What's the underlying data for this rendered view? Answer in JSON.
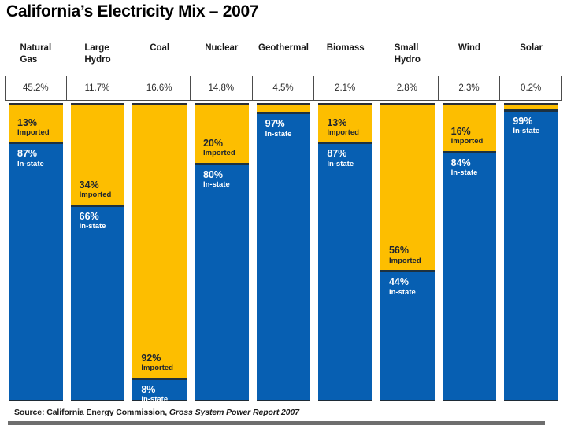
{
  "title": "California’s Electricity Mix – 2007",
  "source": {
    "prefix": "Source: California Energy Commission, ",
    "report": "Gross System Power Report 2007"
  },
  "colors": {
    "imported": "#FDBE00",
    "instate": "#075FB2",
    "segment_divider": "#1d3140",
    "table_border": "#4c4c4c"
  },
  "chart_data": {
    "type": "bar",
    "title": "California’s Electricity Mix – 2007",
    "categories": [
      "Natural Gas",
      "Large Hydro",
      "Coal",
      "Nuclear",
      "Geothermal",
      "Biomass",
      "Small Hydro",
      "Wind",
      "Solar"
    ],
    "share_of_total_percent": [
      45.2,
      11.7,
      16.6,
      14.8,
      4.5,
      2.1,
      2.8,
      2.3,
      0.2
    ],
    "series": [
      {
        "name": "Imported",
        "color": "#FDBE00",
        "values": [
          13,
          34,
          92,
          20,
          null,
          13,
          56,
          16,
          null
        ]
      },
      {
        "name": "In-state",
        "color": "#075FB2",
        "values": [
          87,
          66,
          8,
          80,
          97,
          87,
          44,
          84,
          99
        ]
      }
    ],
    "unit": "%",
    "ylim": [
      0,
      100
    ],
    "legend": "none",
    "grid": false,
    "notes": "Each column is a 100% stacked bar (imported on top, in-state below); imported share is unlabeled for Geothermal and Solar. Share-of-total row shown in bordered cells above bars.",
    "source": "Source: California Energy Commission, Gross System Power Report 2007"
  },
  "columns": [
    {
      "header": "Natural\nGas",
      "share": "45.2%",
      "imported_visual_pct": 13,
      "imported_label": "13%",
      "imported_sub": "Imported",
      "instate_label": "87%",
      "instate_sub": "In-state"
    },
    {
      "header": "Large\nHydro",
      "share": "11.7%",
      "imported_visual_pct": 34,
      "imported_label": "34%",
      "imported_sub": "Imported",
      "instate_label": "66%",
      "instate_sub": "In-state"
    },
    {
      "header": "Coal",
      "share": "16.6%",
      "imported_visual_pct": 92,
      "imported_label": "92%",
      "imported_sub": "Imported",
      "instate_label": "8%",
      "instate_sub": "In-state"
    },
    {
      "header": "Nuclear",
      "share": "14.8%",
      "imported_visual_pct": 20,
      "imported_label": "20%",
      "imported_sub": "Imported",
      "instate_label": "80%",
      "instate_sub": "In-state"
    },
    {
      "header": "Geothermal",
      "share": "4.5%",
      "imported_visual_pct": 3,
      "imported_label": "",
      "imported_sub": "",
      "instate_label": "97%",
      "instate_sub": "In-state"
    },
    {
      "header": "Biomass",
      "share": "2.1%",
      "imported_visual_pct": 13,
      "imported_label": "13%",
      "imported_sub": "Imported",
      "instate_label": "87%",
      "instate_sub": "In-state"
    },
    {
      "header": "Small\nHydro",
      "share": "2.8%",
      "imported_visual_pct": 56,
      "imported_label": "56%",
      "imported_sub": "Imported",
      "instate_label": "44%",
      "instate_sub": "In-state"
    },
    {
      "header": "Wind",
      "share": "2.3%",
      "imported_visual_pct": 16,
      "imported_label": "16%",
      "imported_sub": "Imported",
      "instate_label": "84%",
      "instate_sub": "In-state"
    },
    {
      "header": "Solar",
      "share": "0.2%",
      "imported_visual_pct": 1,
      "imported_label": "",
      "imported_sub": "",
      "instate_label": "99%",
      "instate_sub": "In-state"
    }
  ]
}
